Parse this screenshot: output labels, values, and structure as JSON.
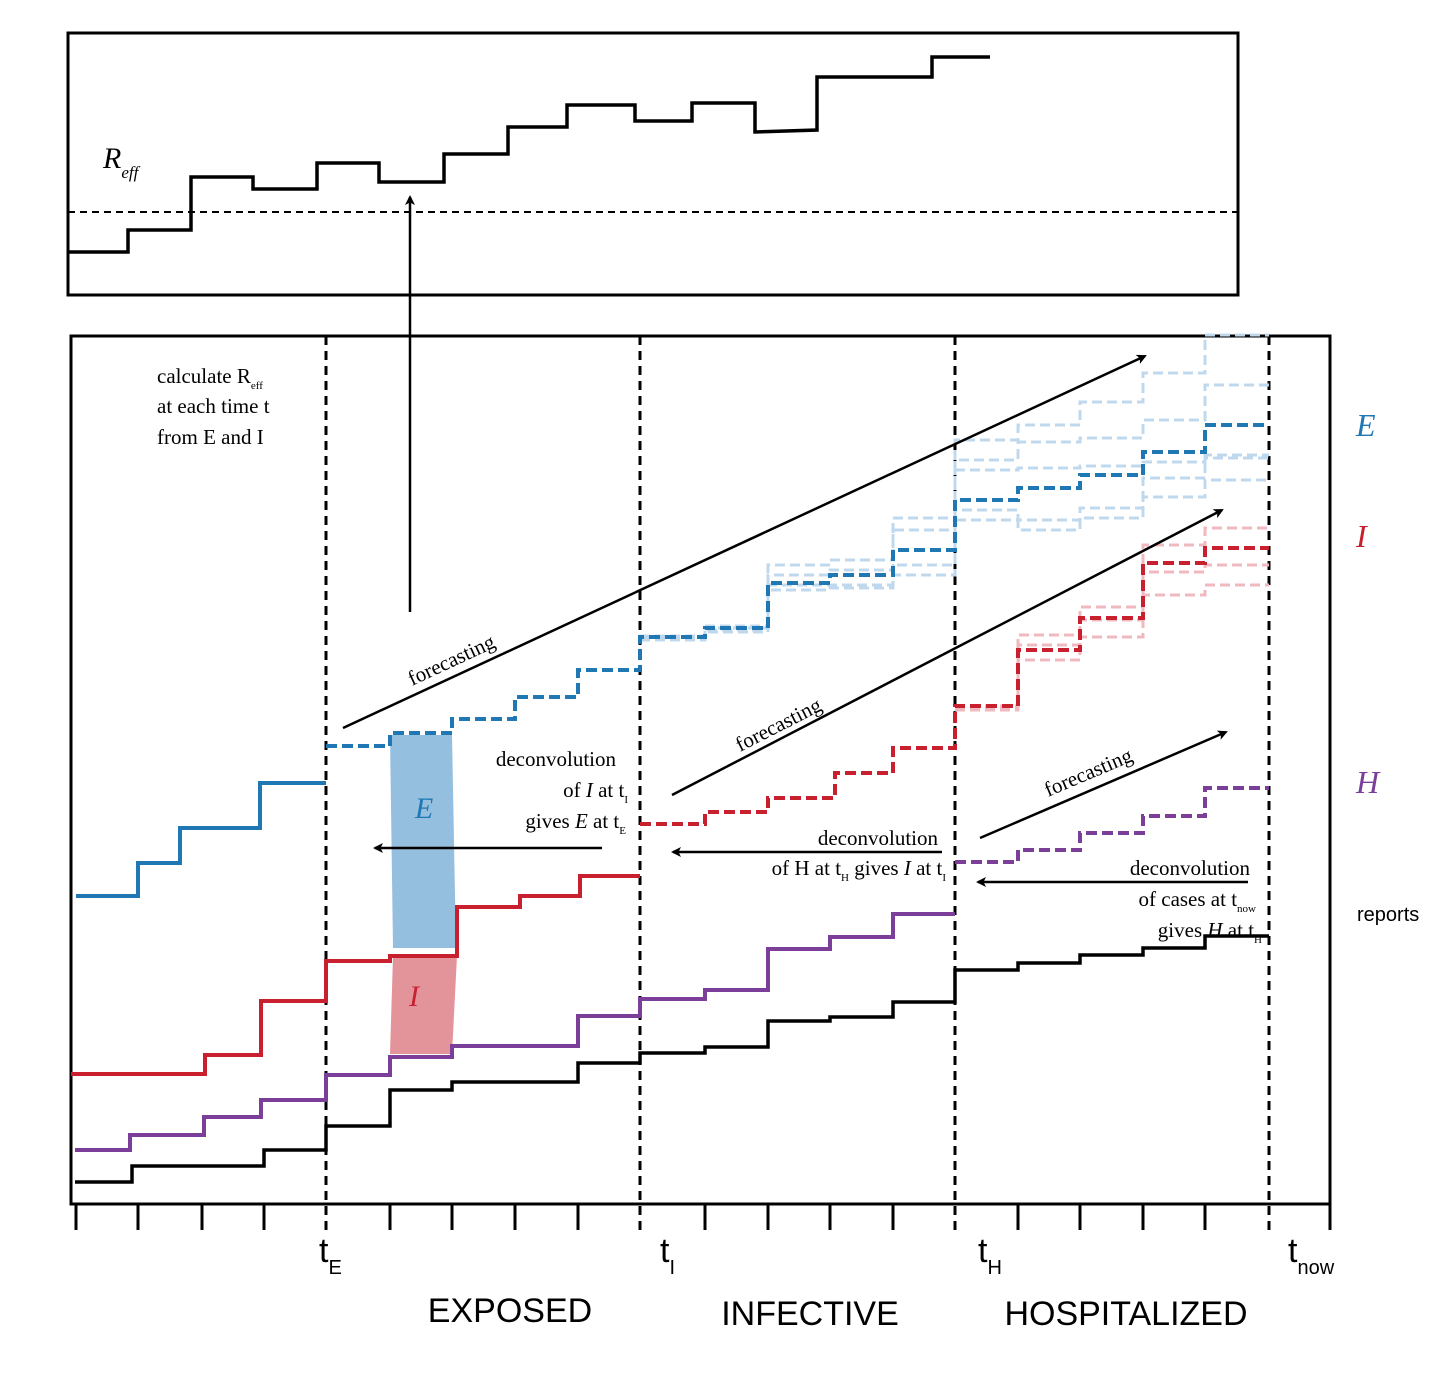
{
  "colors": {
    "E": "#1f77b4",
    "E_light": "#c0d8ee",
    "I": "#c8202f",
    "I_light": "#f0b8bf",
    "H": "#7b3f99",
    "reports": "#000000",
    "E_fill": "#8ab8dc",
    "I_fill": "#e08890"
  },
  "top_panel": {
    "r_label_main": "R",
    "r_label_sub": "eff"
  },
  "annotations": {
    "calc_line1_a": "calculate R",
    "calc_line1_sub": "eff",
    "calc_line2": "at each time t",
    "calc_line3": "from E and I",
    "forecasting_1": "forecasting",
    "forecasting_2": "forecasting",
    "forecasting_3": "forecasting",
    "deconv1_line1": "deconvolution",
    "deconv1_line2_a": "of ",
    "deconv1_line2_b": "I",
    "deconv1_line2_c": " at t",
    "deconv1_line2_sub": "I",
    "deconv1_line3_a": "gives ",
    "deconv1_line3_b": "E",
    "deconv1_line3_c": " at t",
    "deconv1_line3_sub": "E",
    "deconv2_line1": "deconvolution",
    "deconv2_line2_a": "of H at t",
    "deconv2_line2_sub1": "H",
    "deconv2_line2_b": " gives ",
    "deconv2_line2_c": "I",
    "deconv2_line2_d": " at t",
    "deconv2_line2_sub2": "I",
    "deconv3_line1": "deconvolution",
    "deconv3_line2_a": "of cases at t",
    "deconv3_line2_sub": "now",
    "deconv3_line3_a": "gives ",
    "deconv3_line3_b": "H",
    "deconv3_line3_c": " at t",
    "deconv3_line3_sub": "H",
    "fill_E_label": "E",
    "fill_I_label": "I"
  },
  "legend": {
    "E": "E",
    "I": "I",
    "H": "H",
    "reports": "reports"
  },
  "axis": {
    "tE_main": "t",
    "tE_sub": "E",
    "tI_main": "t",
    "tI_sub": "I",
    "tH_main": "t",
    "tH_sub": "H",
    "tnow_main": "t",
    "tnow_sub": "now"
  },
  "phases": {
    "exposed": "EXPOSED",
    "infective": "INFECTIVE",
    "hospitalized": "HOSPITALIZED"
  }
}
